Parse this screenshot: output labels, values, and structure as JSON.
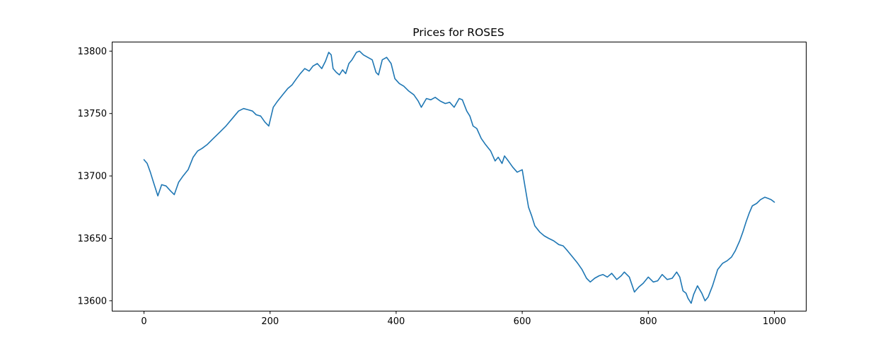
{
  "chart_data": {
    "type": "line",
    "title": "Prices for ROSES",
    "xlabel": "",
    "ylabel": "",
    "xlim": [
      -50,
      1050
    ],
    "ylim": [
      13592,
      13807
    ],
    "x_ticks": [
      0,
      200,
      400,
      600,
      800,
      1000
    ],
    "y_ticks": [
      13600,
      13650,
      13700,
      13750,
      13800
    ],
    "grid": false,
    "legend": "none",
    "series": [
      {
        "color": "#1f77b4",
        "x": [
          0,
          5,
          10,
          15,
          22,
          28,
          35,
          42,
          48,
          55,
          62,
          70,
          78,
          85,
          92,
          100,
          110,
          120,
          130,
          140,
          150,
          158,
          165,
          172,
          178,
          185,
          192,
          198,
          205,
          212,
          220,
          228,
          235,
          242,
          248,
          255,
          262,
          268,
          275,
          282,
          288,
          293,
          297,
          300,
          305,
          310,
          315,
          320,
          325,
          330,
          337,
          342,
          348,
          355,
          362,
          368,
          372,
          378,
          385,
          392,
          398,
          405,
          412,
          420,
          428,
          435,
          440,
          448,
          455,
          462,
          470,
          478,
          485,
          492,
          500,
          505,
          512,
          517,
          522,
          528,
          535,
          542,
          550,
          557,
          562,
          568,
          572,
          578,
          585,
          592,
          600,
          605,
          610,
          615,
          620,
          628,
          635,
          642,
          650,
          658,
          665,
          672,
          680,
          688,
          695,
          702,
          708,
          715,
          722,
          728,
          735,
          742,
          750,
          757,
          762,
          770,
          778,
          785,
          792,
          800,
          808,
          815,
          822,
          830,
          838,
          845,
          850,
          855,
          860,
          863,
          868,
          872,
          878,
          885,
          890,
          895,
          902,
          910,
          918,
          925,
          932,
          938,
          945,
          950,
          955,
          960,
          965,
          972,
          978,
          985,
          990,
          995,
          1000
        ],
        "values": [
          13713,
          13710,
          13703,
          13695,
          13684,
          13693,
          13692,
          13688,
          13685,
          13695,
          13700,
          13705,
          13715,
          13720,
          13722,
          13725,
          13730,
          13735,
          13740,
          13746,
          13752,
          13754,
          13753,
          13752,
          13749,
          13748,
          13743,
          13740,
          13755,
          13760,
          13765,
          13770,
          13773,
          13778,
          13782,
          13786,
          13784,
          13788,
          13790,
          13786,
          13792,
          13799,
          13797,
          13786,
          13783,
          13781,
          13785,
          13782,
          13790,
          13793,
          13799,
          13800,
          13797,
          13795,
          13793,
          13783,
          13781,
          13793,
          13795,
          13790,
          13778,
          13774,
          13772,
          13768,
          13765,
          13760,
          13755,
          13762,
          13761,
          13763,
          13760,
          13758,
          13759,
          13755,
          13762,
          13761,
          13752,
          13748,
          13740,
          13738,
          13730,
          13725,
          13720,
          13712,
          13715,
          13710,
          13716,
          13712,
          13707,
          13703,
          13705,
          13690,
          13675,
          13668,
          13660,
          13655,
          13652,
          13650,
          13648,
          13645,
          13644,
          13640,
          13635,
          13630,
          13625,
          13618,
          13615,
          13618,
          13620,
          13621,
          13619,
          13622,
          13617,
          13620,
          13623,
          13619,
          13607,
          13611,
          13614,
          13619,
          13615,
          13616,
          13621,
          13617,
          13618,
          13623,
          13619,
          13608,
          13606,
          13602,
          13598,
          13605,
          13612,
          13606,
          13600,
          13603,
          13612,
          13625,
          13630,
          13632,
          13635,
          13640,
          13648,
          13655,
          13663,
          13670,
          13676,
          13678,
          13681,
          13683,
          13682,
          13681,
          13679
        ]
      }
    ]
  }
}
